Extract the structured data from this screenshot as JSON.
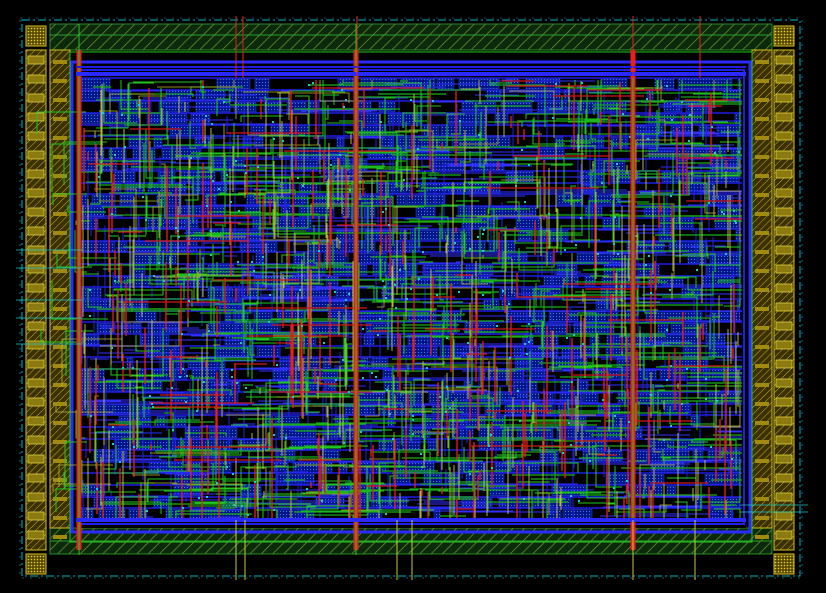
{
  "view": {
    "background": "#000000"
  },
  "layers": {
    "boundary": {
      "color": "#00b4c8",
      "style": "dash-dot"
    },
    "io_ring": {
      "color": "#2a8a2a",
      "hatch": "#7a9a3a",
      "fill": "#0d3a0d"
    },
    "io_pads": {
      "color": "#d4c020",
      "fill": "#6a5a00"
    },
    "corner_cells": {
      "color": "#d4c020",
      "fill": "#8a7a10"
    },
    "power_ring": {
      "color": "#2a2aff"
    },
    "metal1_blue": {
      "color": "#1e1ee6"
    },
    "metal2_green": {
      "color": "#20c820"
    },
    "metal3_red": {
      "color": "#e62020"
    },
    "poly_yellow": {
      "color": "#c8c840"
    },
    "via_cyan": {
      "color": "#20c8c8"
    },
    "cell_fill": {
      "color": "#001a99"
    }
  },
  "core": {
    "straps": 3,
    "rows": 38
  }
}
